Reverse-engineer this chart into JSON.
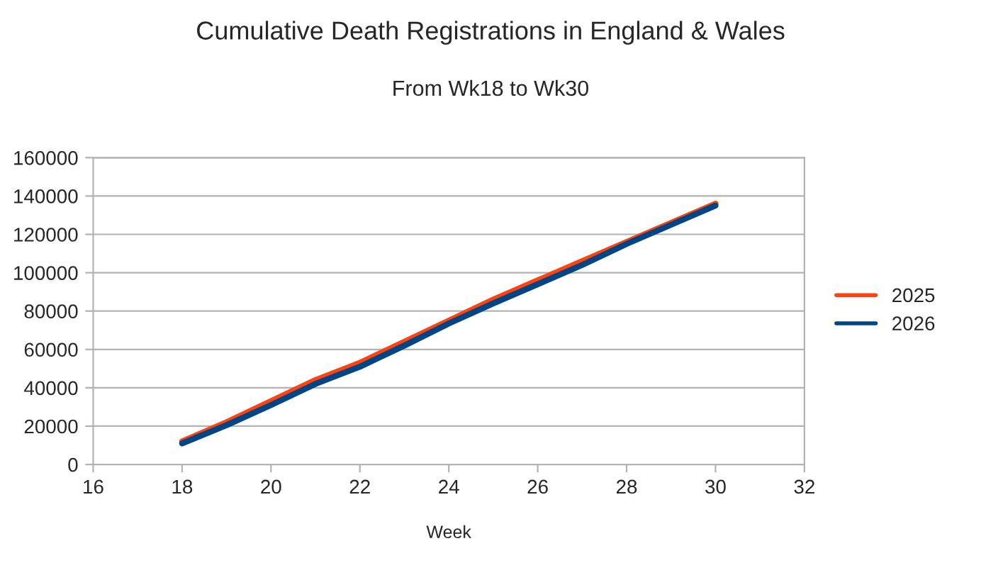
{
  "chart_data": {
    "type": "line",
    "title": "Cumulative Death Registrations in England & Wales",
    "subtitle": "From Wk18 to Wk30",
    "xlabel": "Week",
    "x": [
      18,
      19,
      20,
      21,
      22,
      23,
      24,
      25,
      26,
      27,
      28,
      29,
      30
    ],
    "series": [
      {
        "name": "2025",
        "color": "#ff420e",
        "values": [
          12000,
          22000,
          33000,
          44000,
          53000,
          64000,
          75000,
          86000,
          96000,
          106000,
          116000,
          126000,
          136000
        ]
      },
      {
        "name": "2026",
        "color": "#004586",
        "values": [
          11000,
          20500,
          31000,
          42000,
          51000,
          62000,
          73500,
          84000,
          94000,
          104000,
          115000,
          125000,
          135000
        ]
      }
    ],
    "xlim": [
      16,
      32
    ],
    "xticks": [
      16,
      18,
      20,
      22,
      24,
      26,
      28,
      30,
      32
    ],
    "ylim": [
      0,
      160000
    ],
    "yticks": [
      0,
      20000,
      40000,
      60000,
      80000,
      100000,
      120000,
      140000,
      160000
    ],
    "grid": "y",
    "legend": "right"
  }
}
